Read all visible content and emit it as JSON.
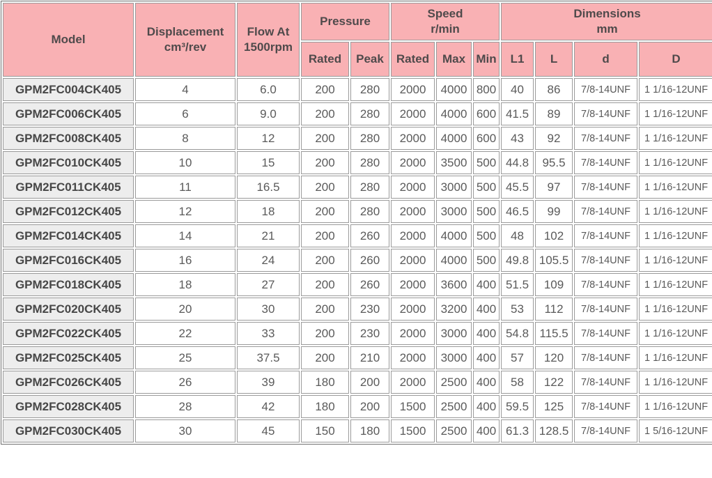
{
  "table": {
    "headers": {
      "model": "Model",
      "displacement": "Displacement\ncm³/rev",
      "flow": "Flow At\n1500rpm",
      "pressure": "Pressure",
      "speed": "Speed\nr/min",
      "dimensions": "Dimensions\nmm"
    },
    "sub_headers": {
      "pressure_rated": "Rated",
      "pressure_peak": "Peak",
      "speed_rated": "Rated",
      "speed_max": "Max",
      "speed_min": "Min",
      "l1": "L1",
      "l": "L",
      "d": "d",
      "D": "D"
    },
    "rows": [
      [
        "GPM2FC004CK405",
        "4",
        "6.0",
        "200",
        "280",
        "2000",
        "4000",
        "800",
        "40",
        "86",
        "7/8-14UNF",
        "1 1/16-12UNF"
      ],
      [
        "GPM2FC006CK405",
        "6",
        "9.0",
        "200",
        "280",
        "2000",
        "4000",
        "600",
        "41.5",
        "89",
        "7/8-14UNF",
        "1 1/16-12UNF"
      ],
      [
        "GPM2FC008CK405",
        "8",
        "12",
        "200",
        "280",
        "2000",
        "4000",
        "600",
        "43",
        "92",
        "7/8-14UNF",
        "1 1/16-12UNF"
      ],
      [
        "GPM2FC010CK405",
        "10",
        "15",
        "200",
        "280",
        "2000",
        "3500",
        "500",
        "44.8",
        "95.5",
        "7/8-14UNF",
        "1 1/16-12UNF"
      ],
      [
        "GPM2FC011CK405",
        "11",
        "16.5",
        "200",
        "280",
        "2000",
        "3000",
        "500",
        "45.5",
        "97",
        "7/8-14UNF",
        "1 1/16-12UNF"
      ],
      [
        "GPM2FC012CK405",
        "12",
        "18",
        "200",
        "280",
        "2000",
        "3000",
        "500",
        "46.5",
        "99",
        "7/8-14UNF",
        "1 1/16-12UNF"
      ],
      [
        "GPM2FC014CK405",
        "14",
        "21",
        "200",
        "260",
        "2000",
        "4000",
        "500",
        "48",
        "102",
        "7/8-14UNF",
        "1 1/16-12UNF"
      ],
      [
        "GPM2FC016CK405",
        "16",
        "24",
        "200",
        "260",
        "2000",
        "4000",
        "500",
        "49.8",
        "105.5",
        "7/8-14UNF",
        "1 1/16-12UNF"
      ],
      [
        "GPM2FC018CK405",
        "18",
        "27",
        "200",
        "260",
        "2000",
        "3600",
        "400",
        "51.5",
        "109",
        "7/8-14UNF",
        "1 1/16-12UNF"
      ],
      [
        "GPM2FC020CK405",
        "20",
        "30",
        "200",
        "230",
        "2000",
        "3200",
        "400",
        "53",
        "112",
        "7/8-14UNF",
        "1 1/16-12UNF"
      ],
      [
        "GPM2FC022CK405",
        "22",
        "33",
        "200",
        "230",
        "2000",
        "3000",
        "400",
        "54.8",
        "115.5",
        "7/8-14UNF",
        "1 1/16-12UNF"
      ],
      [
        "GPM2FC025CK405",
        "25",
        "37.5",
        "200",
        "210",
        "2000",
        "3000",
        "400",
        "57",
        "120",
        "7/8-14UNF",
        "1 1/16-12UNF"
      ],
      [
        "GPM2FC026CK405",
        "26",
        "39",
        "180",
        "200",
        "2000",
        "2500",
        "400",
        "58",
        "122",
        "7/8-14UNF",
        "1 1/16-12UNF"
      ],
      [
        "GPM2FC028CK405",
        "28",
        "42",
        "180",
        "200",
        "1500",
        "2500",
        "400",
        "59.5",
        "125",
        "7/8-14UNF",
        "1 1/16-12UNF"
      ],
      [
        "GPM2FC030CK405",
        "30",
        "45",
        "150",
        "180",
        "1500",
        "2500",
        "400",
        "61.3",
        "128.5",
        "7/8-14UNF",
        "1 5/16-12UNF"
      ]
    ]
  }
}
